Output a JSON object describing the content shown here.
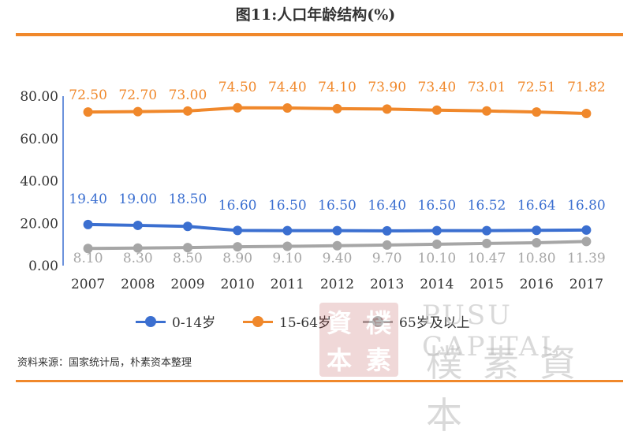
{
  "title": "图11:人口年龄结构(%)",
  "source": "资料来源：国家统计局，朴素资本整理",
  "colors": {
    "accent": "#F0882B",
    "series_blue": "#3B6FD0",
    "series_orange": "#F0882B",
    "series_gray": "#A6A6A6"
  },
  "watermark": {
    "seal_chars": [
      "資",
      "樸",
      "本",
      "素"
    ],
    "en": "PUSU CAPITAL",
    "cn": "樸素資本"
  },
  "chart_data": {
    "type": "line",
    "categories": [
      "2007",
      "2008",
      "2009",
      "2010",
      "2011",
      "2012",
      "2013",
      "2014",
      "2015",
      "2016",
      "2017"
    ],
    "ylim": [
      0,
      80
    ],
    "yticks": [
      "0.00",
      "20.00",
      "40.00",
      "60.00",
      "80.00"
    ],
    "series": [
      {
        "name": "0-14岁",
        "color": "#3B6FD0",
        "values": [
          19.4,
          19.0,
          18.5,
          16.6,
          16.5,
          16.5,
          16.4,
          16.5,
          16.52,
          16.64,
          16.8
        ],
        "labels": [
          "19.40",
          "19.00",
          "18.50",
          "16.60",
          "16.50",
          "16.50",
          "16.40",
          "16.50",
          "16.52",
          "16.64",
          "16.80"
        ]
      },
      {
        "name": "15-64岁",
        "color": "#F0882B",
        "values": [
          72.5,
          72.7,
          73.0,
          74.5,
          74.4,
          74.1,
          73.9,
          73.4,
          73.01,
          72.51,
          71.82
        ],
        "labels": [
          "72.50",
          "72.70",
          "73.00",
          "74.50",
          "74.40",
          "74.10",
          "73.90",
          "73.40",
          "73.01",
          "72.51",
          "71.82"
        ]
      },
      {
        "name": "65岁及以上",
        "color": "#A6A6A6",
        "values": [
          8.1,
          8.3,
          8.5,
          8.9,
          9.1,
          9.4,
          9.7,
          10.1,
          10.47,
          10.8,
          11.39
        ],
        "labels": [
          "8.10",
          "8.30",
          "8.50",
          "8.90",
          "9.10",
          "9.40",
          "9.70",
          "10.10",
          "10.47",
          "10.80",
          "11.39"
        ]
      }
    ],
    "legend": "bottom",
    "grid": false
  }
}
